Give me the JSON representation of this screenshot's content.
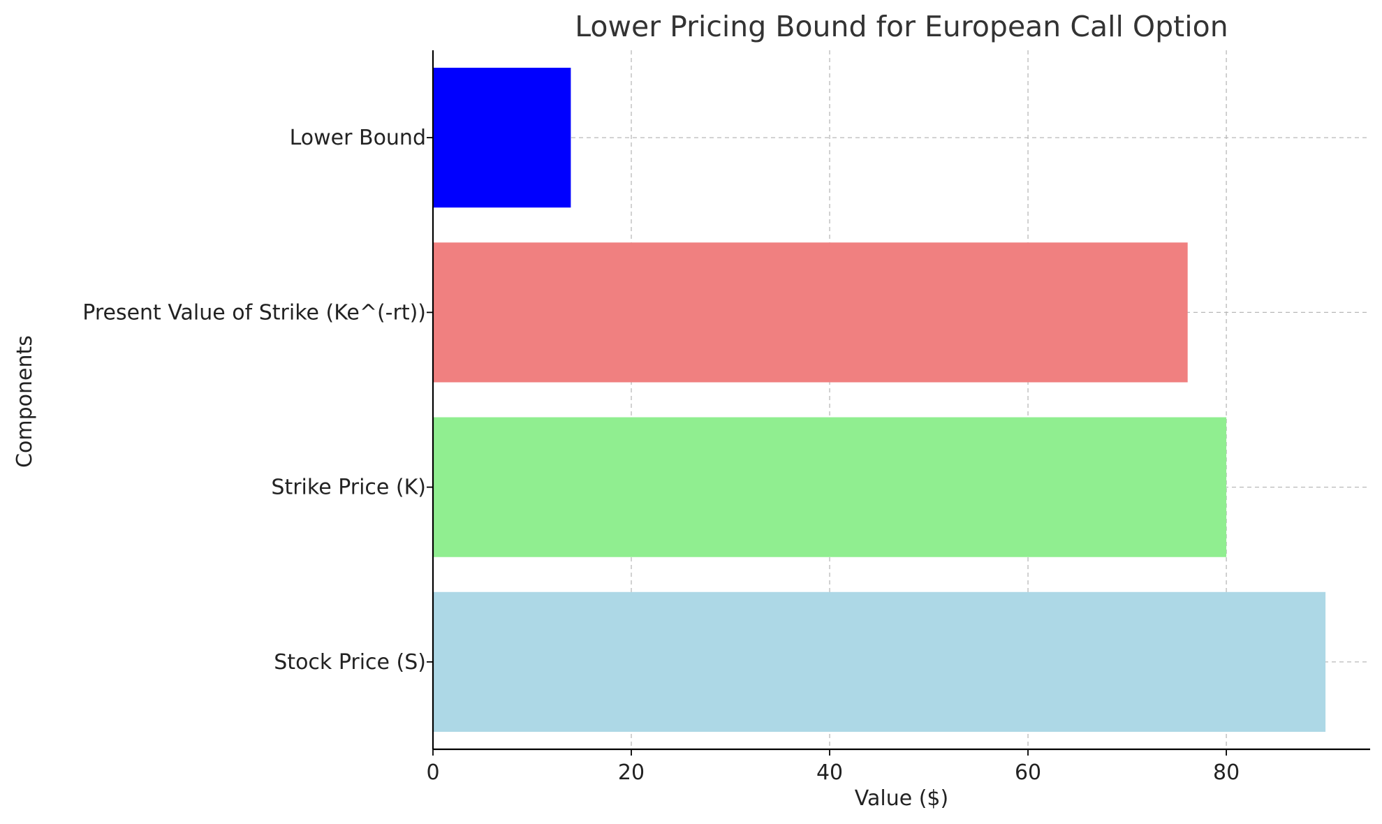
{
  "chart_data": {
    "type": "bar",
    "orientation": "horizontal",
    "title": "Lower Pricing Bound for European Call Option",
    "xlabel": "Value ($)",
    "ylabel": "Components",
    "categories": [
      "Stock Price (S)",
      "Strike Price (K)",
      "Present Value of Strike (Ke^(-rt))",
      "Lower Bound"
    ],
    "values": [
      90,
      80,
      76.1,
      13.9
    ],
    "colors": [
      "#add8e6",
      "#90ee90",
      "#f08080",
      "#0000ff"
    ],
    "xlim": [
      0,
      94.5
    ],
    "xticks": [
      0,
      20,
      40,
      60,
      80
    ],
    "grid": true
  }
}
